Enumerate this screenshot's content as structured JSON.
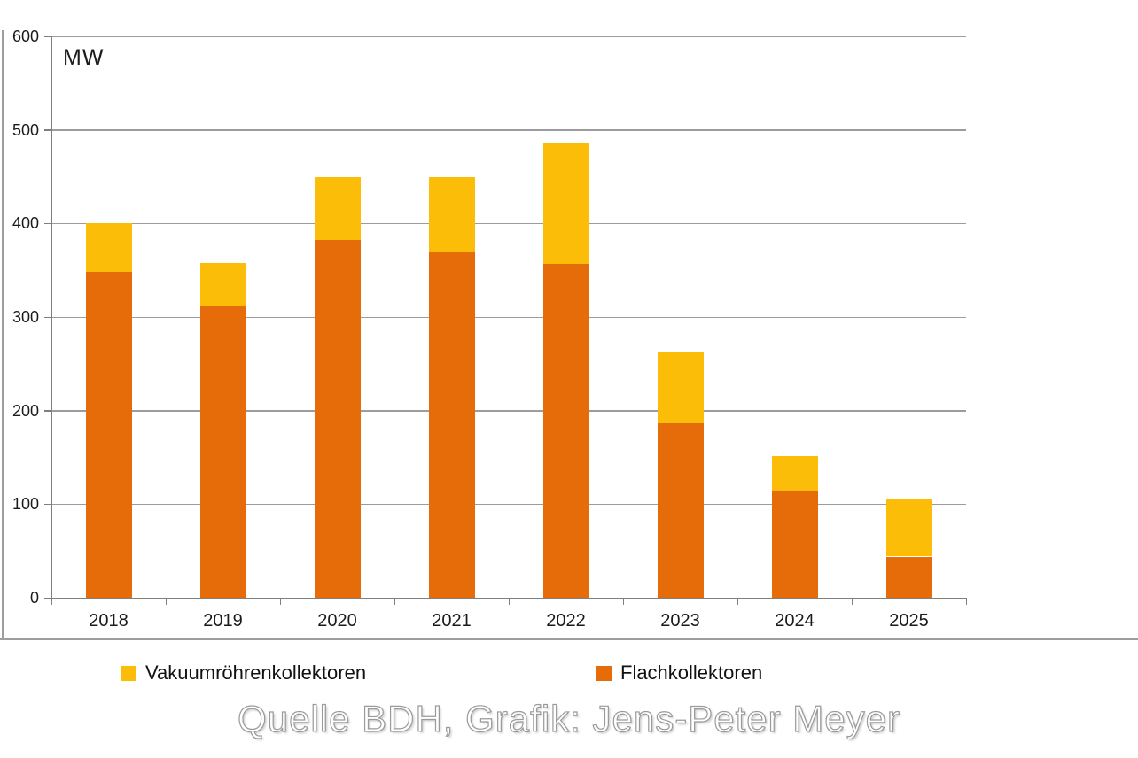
{
  "chart_data": {
    "type": "bar",
    "stacked": true,
    "unit_label": "MW",
    "categories": [
      "2018",
      "2019",
      "2020",
      "2021",
      "2022",
      "2023",
      "2024",
      "2025"
    ],
    "series": [
      {
        "name": "Flachkollektoren",
        "color": "#E66C09",
        "values": [
          348,
          311,
          382,
          369,
          357,
          186,
          114,
          44
        ]
      },
      {
        "name": "Vakuumröhrenkollektoren",
        "color": "#FBBD08",
        "values": [
          52,
          47,
          68,
          81,
          129,
          77,
          37,
          62
        ]
      }
    ],
    "totals": [
      400,
      358,
      450,
      450,
      486,
      263,
      151,
      106
    ],
    "ylim": [
      0,
      600
    ],
    "yticks": [
      0,
      100,
      200,
      300,
      400,
      500,
      600
    ],
    "grid": true,
    "legend_position": "bottom",
    "gridline_color": "#9C9C9C",
    "axis_color": "#7F7F7F",
    "frame_color": "#9E9E9E",
    "text_color": "#1A1A1A"
  },
  "legend": {
    "items": [
      {
        "label": "Vakuumröhrenkollektoren",
        "color": "#FBBD08"
      },
      {
        "label": "Flachkollektoren",
        "color": "#E66C09"
      }
    ]
  },
  "footer": {
    "credit": "Quelle BDH, Grafik: Jens-Peter Meyer"
  }
}
